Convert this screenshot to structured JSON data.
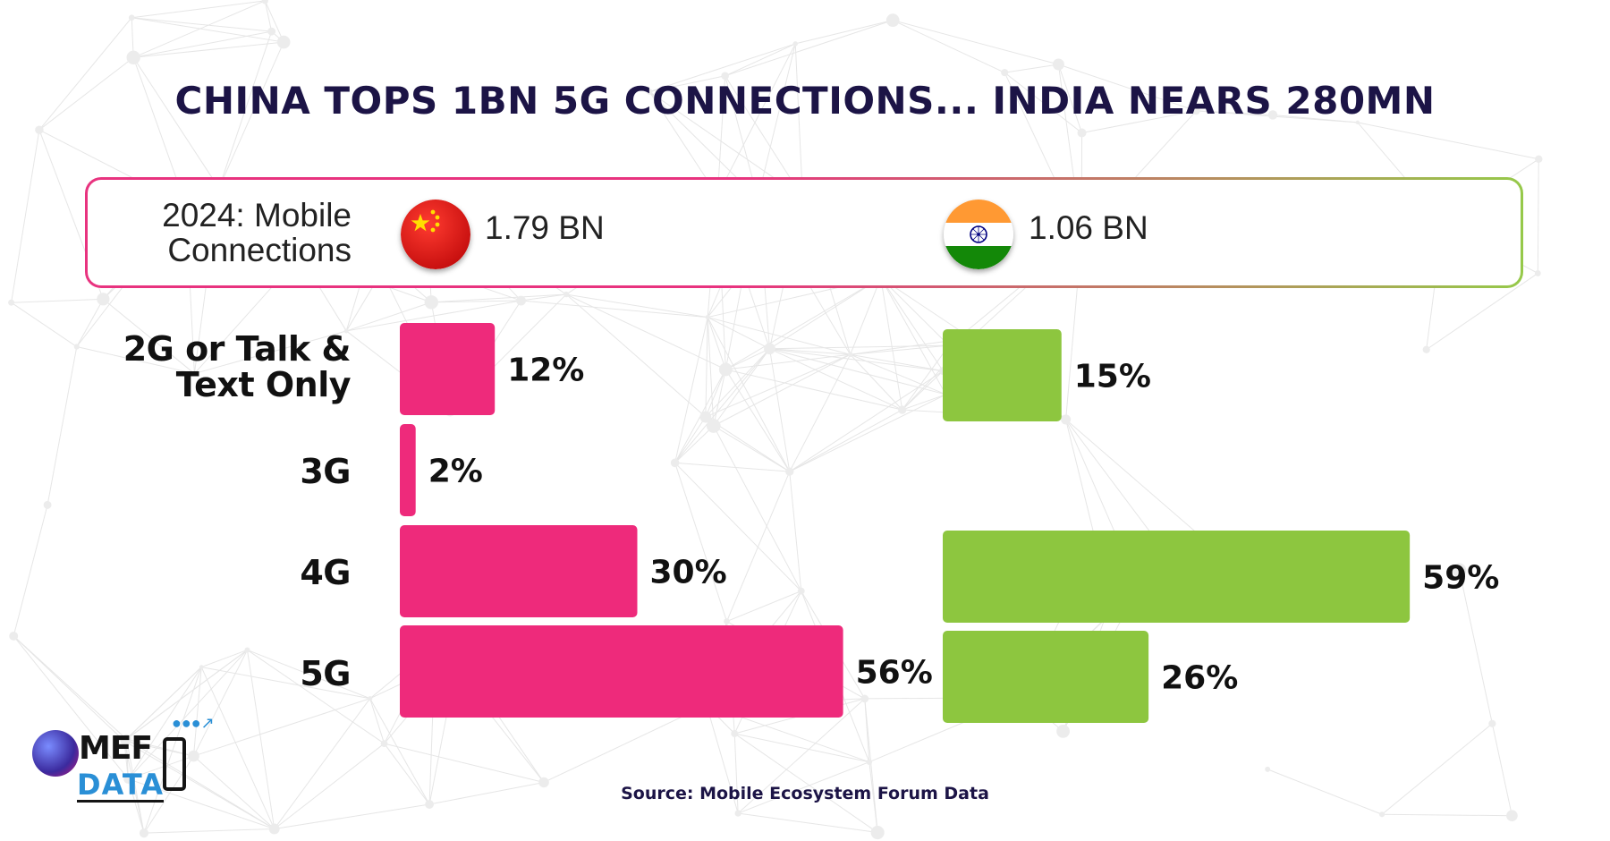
{
  "title": "CHINA TOPS 1BN 5G CONNECTIONS... INDIA NEARS 280MN",
  "summary": {
    "label_line1": "2024: Mobile",
    "label_line2": "Connections",
    "china_total": "1.79 BN",
    "india_total": "1.06 BN"
  },
  "colors": {
    "china": "#ee2a7b",
    "india": "#8dc63f",
    "title": "#1c1446"
  },
  "icons": {
    "china_flag": "china-flag-icon",
    "india_flag": "india-flag-icon"
  },
  "categories": [
    {
      "line1": "2G or Talk &",
      "line2": "Text Only"
    },
    {
      "line1": "3G",
      "line2": ""
    },
    {
      "line1": "4G",
      "line2": ""
    },
    {
      "line1": "5G",
      "line2": ""
    }
  ],
  "chart_data": {
    "type": "bar",
    "orientation": "horizontal",
    "title": "CHINA TOPS 1BN 5G CONNECTIONS... INDIA NEARS 280MN",
    "categories": [
      "2G or Talk & Text Only",
      "3G",
      "4G",
      "5G"
    ],
    "series": [
      {
        "name": "",
        "color": "#ee2a7b",
        "values": [
          12,
          2,
          30,
          56
        ],
        "labels": [
          "12%",
          "2%",
          "30%",
          "56%"
        ]
      },
      {
        "name": "",
        "color": "#8dc63f",
        "values": [
          15,
          0,
          59,
          26
        ],
        "labels": [
          "15%",
          "",
          "59%",
          "26%"
        ]
      }
    ],
    "xlabel": "",
    "ylabel": "",
    "grid": false,
    "legend": "none"
  },
  "source": "Source: Mobile Ecosystem Forum Data",
  "logo": {
    "mef": "MEF",
    "data": "DATA"
  }
}
